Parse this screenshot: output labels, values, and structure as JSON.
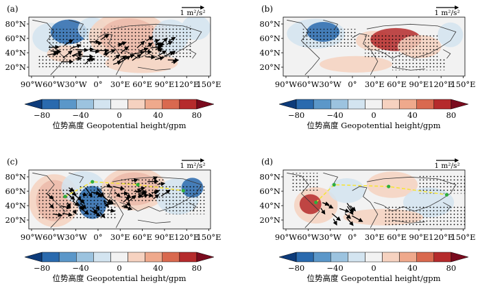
{
  "panels": [
    {
      "id": "a",
      "letter": "(a)",
      "ref_vector": "1 m²/s²",
      "has_wave_path": false
    },
    {
      "id": "b",
      "letter": "(b)",
      "ref_vector": "1 m²/s²",
      "has_wave_path": false
    },
    {
      "id": "c",
      "letter": "(c)",
      "ref_vector": "1 m²/s²",
      "has_wave_path": true
    },
    {
      "id": "d",
      "letter": "(d)",
      "ref_vector": "1 m²/s²",
      "has_wave_path": true
    }
  ],
  "lat_labels": [
    "80°N",
    "60°N",
    "40°N",
    "20°N"
  ],
  "lon_labels": [
    "90°W",
    "60°W",
    "30°W",
    "0°",
    "30°E",
    "60°E",
    "90°E",
    "120°E",
    "150°E"
  ],
  "colorbar": {
    "ticks": [
      "-80",
      "-40",
      "0",
      "40",
      "80"
    ],
    "label": "位势高度 Geopotential height/gpm",
    "colors": [
      "#0d3b7a",
      "#2a6aae",
      "#5b97c9",
      "#9cc3df",
      "#d3e4f0",
      "#f2f2f2",
      "#f6d2c0",
      "#efa98c",
      "#d9694f",
      "#b52b2c",
      "#7a0b1e"
    ]
  },
  "colors": {
    "positive_strong": "#b52b2c",
    "positive_weak": "#f6d2c0",
    "negative_strong": "#2a6aae",
    "negative_weak": "#d3e4f0",
    "wave_path": "#f5e43a",
    "wave_node": "#2fae3c"
  }
}
